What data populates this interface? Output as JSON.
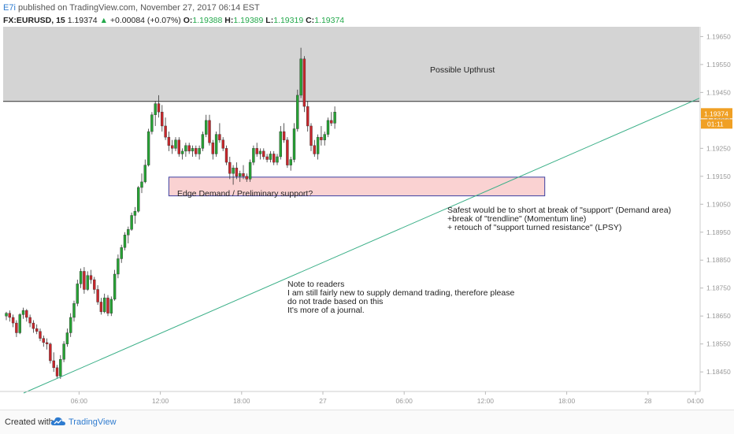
{
  "header": {
    "author": "E7i",
    "published_text": " published on TradingView.com, November 27, 2017 06:14 EST",
    "symbol": "FX:EURUSD, 15",
    "last": "1.19374",
    "change": "+0.00084 (+0.07%)",
    "o_label": "O:",
    "o_value": "1.19388",
    "h_label": "H:",
    "h_value": "1.19389",
    "l_label": "L:",
    "l_value": "1.19319",
    "c_label": "C:",
    "c_value": "1.19374"
  },
  "colors": {
    "up_candle": "#26a234",
    "down_candle": "#c8262b",
    "supply_zone": "#d4d4d4",
    "demand_zone": "#fad2d2",
    "demand_border": "#3b3fa0",
    "trendline": "#3aaf87",
    "price_tag": "#f0a024",
    "brand": "#2e7bcf"
  },
  "chart_data": {
    "type": "candlestick",
    "price_axis": {
      "ticks": [
        1.1965,
        1.1955,
        1.1945,
        1.1935,
        1.1925,
        1.1915,
        1.1905,
        1.1895,
        1.1885,
        1.1875,
        1.1865,
        1.1855,
        1.1845
      ],
      "tick_labels": [
        "1.19650",
        "1.19550",
        "1.19450",
        "1.19350",
        "1.19250",
        "1.19150",
        "1.19050",
        "1.18950",
        "1.18850",
        "1.18750",
        "1.18650",
        "1.18550",
        "1.18450"
      ],
      "range": [
        1.1838,
        1.19685
      ],
      "last_price_label": "1.19374",
      "countdown_label": "01:11",
      "last_price": 1.19374
    },
    "time_axis": {
      "tick_labels": [
        "06:00",
        "12:00",
        "18:00",
        "27",
        "06:00",
        "12:00",
        "18:00",
        "28",
        "04:00"
      ],
      "tick_bar_index": [
        8,
        32,
        56,
        80,
        104,
        128,
        152,
        176,
        190
      ]
    },
    "candles": [
      [
        1.1865,
        1.18665,
        1.18635,
        1.1866
      ],
      [
        1.1866,
        1.1867,
        1.1863,
        1.18645
      ],
      [
        1.18645,
        1.18655,
        1.1861,
        1.18625
      ],
      [
        1.18625,
        1.18635,
        1.18575,
        1.1859
      ],
      [
        1.1859,
        1.1866,
        1.18585,
        1.18655
      ],
      [
        1.18655,
        1.1868,
        1.1864,
        1.1867
      ],
      [
        1.1867,
        1.18675,
        1.1863,
        1.18645
      ],
      [
        1.18645,
        1.18655,
        1.1861,
        1.18625
      ],
      [
        1.18625,
        1.18635,
        1.1859,
        1.18605
      ],
      [
        1.18605,
        1.1862,
        1.18585,
        1.18595
      ],
      [
        1.18595,
        1.18605,
        1.1856,
        1.1857
      ],
      [
        1.1857,
        1.1858,
        1.1854,
        1.18555
      ],
      [
        1.18555,
        1.1857,
        1.1853,
        1.1855
      ],
      [
        1.1855,
        1.18555,
        1.1848,
        1.1849
      ],
      [
        1.1849,
        1.1852,
        1.1845,
        1.18465
      ],
      [
        1.18465,
        1.18475,
        1.18425,
        1.18435
      ],
      [
        1.18435,
        1.1851,
        1.18425,
        1.18495
      ],
      [
        1.18495,
        1.1856,
        1.18485,
        1.1855
      ],
      [
        1.1855,
        1.18605,
        1.1854,
        1.1859
      ],
      [
        1.1859,
        1.1866,
        1.18575,
        1.18645
      ],
      [
        1.18645,
        1.18705,
        1.1863,
        1.18695
      ],
      [
        1.18695,
        1.1878,
        1.18685,
        1.18765
      ],
      [
        1.18765,
        1.1882,
        1.1875,
        1.1881
      ],
      [
        1.1881,
        1.18825,
        1.1873,
        1.18745
      ],
      [
        1.18745,
        1.1881,
        1.1874,
        1.18795
      ],
      [
        1.18795,
        1.18815,
        1.18765,
        1.1878
      ],
      [
        1.1878,
        1.1879,
        1.1873,
        1.18745
      ],
      [
        1.18745,
        1.1876,
        1.1869,
        1.187
      ],
      [
        1.187,
        1.18715,
        1.18655,
        1.18665
      ],
      [
        1.18665,
        1.1873,
        1.1866,
        1.18715
      ],
      [
        1.18715,
        1.18725,
        1.1865,
        1.1866
      ],
      [
        1.1866,
        1.1872,
        1.1865,
        1.1871
      ],
      [
        1.1871,
        1.18815,
        1.18705,
        1.188
      ],
      [
        1.188,
        1.1887,
        1.18785,
        1.18855
      ],
      [
        1.18855,
        1.18905,
        1.1884,
        1.18895
      ],
      [
        1.18895,
        1.1895,
        1.18885,
        1.1894
      ],
      [
        1.1894,
        1.1897,
        1.1891,
        1.1896
      ],
      [
        1.1896,
        1.1902,
        1.18955,
        1.1901
      ],
      [
        1.1901,
        1.1904,
        1.1898,
        1.19025
      ],
      [
        1.19025,
        1.19115,
        1.1902,
        1.1911
      ],
      [
        1.1911,
        1.1916,
        1.1909,
        1.1913
      ],
      [
        1.1913,
        1.1921,
        1.19125,
        1.1919
      ],
      [
        1.1919,
        1.1932,
        1.19185,
        1.1931
      ],
      [
        1.1931,
        1.1938,
        1.193,
        1.1937
      ],
      [
        1.1937,
        1.1942,
        1.1933,
        1.1941
      ],
      [
        1.1941,
        1.1944,
        1.1936,
        1.1938
      ],
      [
        1.1938,
        1.19405,
        1.1931,
        1.1933
      ],
      [
        1.1933,
        1.1936,
        1.1928,
        1.1929
      ],
      [
        1.1929,
        1.1931,
        1.1924,
        1.1926
      ],
      [
        1.1926,
        1.1928,
        1.1923,
        1.1925
      ],
      [
        1.1925,
        1.1929,
        1.1924,
        1.1928
      ],
      [
        1.1928,
        1.1929,
        1.1922,
        1.1923
      ],
      [
        1.1923,
        1.1925,
        1.1921,
        1.1924
      ],
      [
        1.1924,
        1.1927,
        1.1922,
        1.1926
      ],
      [
        1.1926,
        1.1927,
        1.1923,
        1.1924
      ],
      [
        1.1924,
        1.1926,
        1.1922,
        1.1925
      ],
      [
        1.1925,
        1.1926,
        1.1922,
        1.1923
      ],
      [
        1.1923,
        1.1926,
        1.1921,
        1.1925
      ],
      [
        1.1925,
        1.1931,
        1.1924,
        1.193
      ],
      [
        1.193,
        1.1937,
        1.1929,
        1.1935
      ],
      [
        1.1935,
        1.1937,
        1.1926,
        1.1927
      ],
      [
        1.1927,
        1.1928,
        1.1921,
        1.1923
      ],
      [
        1.1923,
        1.1931,
        1.1922,
        1.193
      ],
      [
        1.193,
        1.1934,
        1.1927,
        1.1928
      ],
      [
        1.1928,
        1.1929,
        1.1924,
        1.1925
      ],
      [
        1.1925,
        1.1926,
        1.1919,
        1.192
      ],
      [
        1.192,
        1.1922,
        1.1914,
        1.1916
      ],
      [
        1.1916,
        1.1919,
        1.1912,
        1.1918
      ],
      [
        1.1918,
        1.192,
        1.1914,
        1.1915
      ],
      [
        1.1915,
        1.1917,
        1.1913,
        1.1916
      ],
      [
        1.1916,
        1.1919,
        1.1914,
        1.1915
      ],
      [
        1.1915,
        1.1916,
        1.1913,
        1.1914
      ],
      [
        1.1914,
        1.1921,
        1.1913,
        1.192
      ],
      [
        1.192,
        1.1926,
        1.1919,
        1.1925
      ],
      [
        1.1925,
        1.1927,
        1.1922,
        1.1923
      ],
      [
        1.1923,
        1.1925,
        1.1921,
        1.1924
      ],
      [
        1.1924,
        1.1925,
        1.1921,
        1.1922
      ],
      [
        1.1922,
        1.1923,
        1.192,
        1.1921
      ],
      [
        1.1921,
        1.1924,
        1.192,
        1.1923
      ],
      [
        1.1923,
        1.1924,
        1.1919,
        1.192
      ],
      [
        1.192,
        1.1923,
        1.1919,
        1.1922
      ],
      [
        1.1922,
        1.1933,
        1.1921,
        1.1931
      ],
      [
        1.1931,
        1.1934,
        1.1927,
        1.1928
      ],
      [
        1.1928,
        1.1929,
        1.1918,
        1.1919
      ],
      [
        1.1919,
        1.1922,
        1.1917,
        1.1921
      ],
      [
        1.1921,
        1.1934,
        1.192,
        1.1932
      ],
      [
        1.1932,
        1.1946,
        1.1931,
        1.1944
      ],
      [
        1.1944,
        1.1961,
        1.1943,
        1.1957
      ],
      [
        1.1957,
        1.1958,
        1.1938,
        1.194
      ],
      [
        1.194,
        1.1942,
        1.1931,
        1.1933
      ],
      [
        1.1933,
        1.1934,
        1.1924,
        1.1926
      ],
      [
        1.1926,
        1.1928,
        1.1922,
        1.1923
      ],
      [
        1.1923,
        1.193,
        1.1921,
        1.1929
      ],
      [
        1.1929,
        1.1933,
        1.1926,
        1.1928
      ],
      [
        1.1928,
        1.1931,
        1.1926,
        1.193
      ],
      [
        1.193,
        1.1936,
        1.1929,
        1.1935
      ],
      [
        1.1935,
        1.1938,
        1.1933,
        1.1934
      ],
      [
        1.1934,
        1.194,
        1.1932,
        1.1938
      ]
    ],
    "supply_zone": {
      "low": 1.19418,
      "high": 1.19685,
      "label": "Possible Upthrust"
    },
    "resistance_line": {
      "price": 1.19418
    },
    "demand_zone": {
      "low": 1.1908,
      "high": 1.19147,
      "label": "Edge Demand / Preliminary support?"
    },
    "trendline": {
      "from": {
        "bar": 0,
        "price": 1.1838
      },
      "to": {
        "bar": 196,
        "price": 1.19418
      }
    },
    "annotations": [
      {
        "id": "upthrust",
        "lines": [
          "Possible Upthrust"
        ]
      },
      {
        "id": "demand",
        "lines": [
          "Edge Demand / Preliminary support?"
        ]
      },
      {
        "id": "safest",
        "lines": [
          "Safest would be to short at break of \"support\" (Demand area)",
          "+break of \"trendline\" (Momentum line)",
          "+ retouch of \"support turned resistance\" (LPSY)"
        ]
      },
      {
        "id": "note",
        "lines": [
          "Note to readers",
          "I am still fairly new to supply demand trading, therefore please",
          "do not trade based on this",
          "It's more of a journal."
        ]
      }
    ]
  },
  "footer": {
    "created_label": "Created with",
    "brand": "TradingView"
  }
}
